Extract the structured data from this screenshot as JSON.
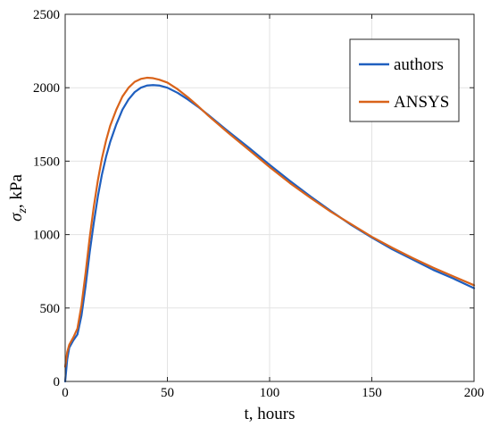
{
  "chart_data": {
    "type": "line",
    "xlabel": "t, hours",
    "ylabel_main": "σ",
    "ylabel_sub": "z",
    "ylabel_rest": ", kPa",
    "xlim": [
      0,
      200
    ],
    "ylim": [
      0,
      2500
    ],
    "xticks": [
      0,
      50,
      100,
      150,
      200
    ],
    "yticks": [
      0,
      500,
      1000,
      1500,
      2000,
      2500
    ],
    "grid": true,
    "legend_position": "top-right",
    "series": [
      {
        "name": "authors",
        "color": "#1f5fbf",
        "x": [
          0,
          1,
          2,
          4,
          6,
          8,
          10,
          12,
          14,
          16,
          18,
          20,
          22,
          25,
          28,
          31,
          34,
          37,
          40,
          43,
          46,
          50,
          55,
          60,
          65,
          70,
          80,
          90,
          100,
          110,
          120,
          130,
          140,
          150,
          160,
          170,
          180,
          190,
          200
        ],
        "y": [
          0,
          150,
          230,
          280,
          320,
          450,
          650,
          880,
          1080,
          1260,
          1410,
          1530,
          1630,
          1750,
          1850,
          1920,
          1970,
          2000,
          2015,
          2018,
          2015,
          2000,
          1965,
          1920,
          1870,
          1815,
          1700,
          1590,
          1475,
          1365,
          1260,
          1160,
          1065,
          980,
          900,
          830,
          760,
          700,
          635
        ]
      },
      {
        "name": "ANSYS",
        "color": "#d9631a",
        "x": [
          0,
          1,
          2,
          4,
          6,
          8,
          10,
          12,
          14,
          16,
          18,
          20,
          22,
          25,
          28,
          31,
          34,
          37,
          40,
          43,
          46,
          50,
          55,
          60,
          65,
          70,
          80,
          90,
          100,
          110,
          120,
          130,
          140,
          150,
          160,
          170,
          180,
          190,
          200
        ],
        "y": [
          100,
          200,
          250,
          300,
          360,
          520,
          740,
          980,
          1190,
          1370,
          1520,
          1640,
          1740,
          1850,
          1940,
          2000,
          2040,
          2060,
          2068,
          2065,
          2055,
          2035,
          1990,
          1935,
          1875,
          1810,
          1690,
          1575,
          1460,
          1350,
          1250,
          1155,
          1070,
          985,
          910,
          840,
          775,
          715,
          655
        ]
      }
    ]
  }
}
